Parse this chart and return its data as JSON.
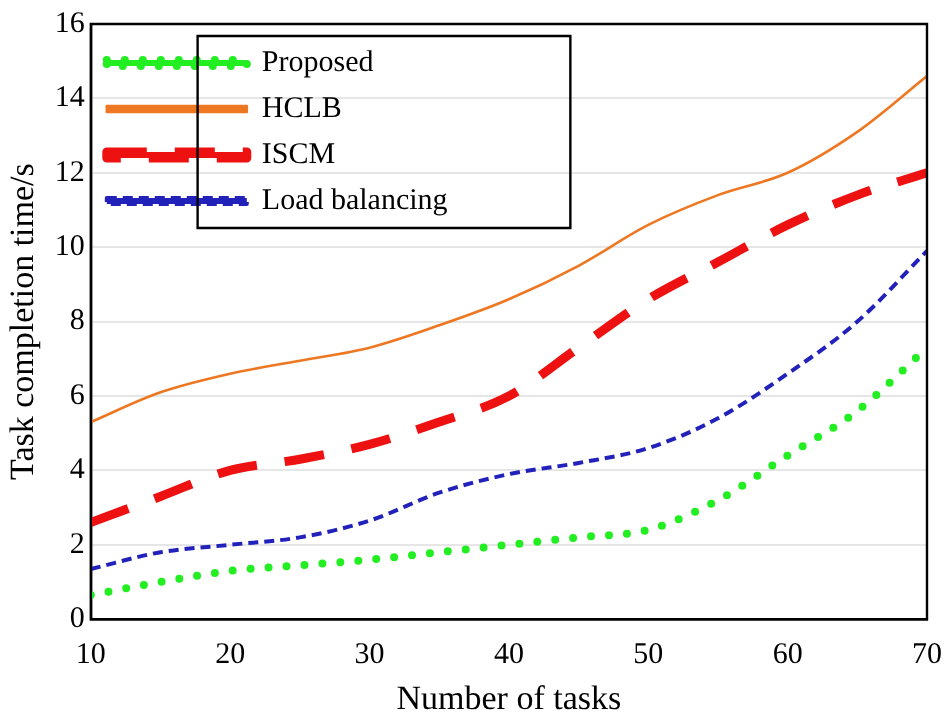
{
  "chart_data": {
    "type": "line",
    "xlabel": "Number of tasks",
    "ylabel": "Task completion time/s",
    "x": [
      10,
      15,
      20,
      25,
      30,
      35,
      40,
      45,
      50,
      55,
      60,
      65,
      70
    ],
    "series": [
      {
        "name": "Proposed",
        "color": "#22ee22",
        "line_style": "dotted",
        "values": [
          0.65,
          1.0,
          1.3,
          1.45,
          1.6,
          1.8,
          2.0,
          2.2,
          2.4,
          3.2,
          4.4,
          5.6,
          7.3
        ]
      },
      {
        "name": "HCLB",
        "color": "#ee7722",
        "line_style": "solid",
        "values": [
          5.3,
          6.1,
          6.6,
          6.95,
          7.3,
          7.9,
          8.6,
          9.5,
          10.6,
          11.4,
          12.0,
          13.1,
          14.6
        ]
      },
      {
        "name": "ISCM",
        "color": "#ee1111",
        "line_style": "dashed",
        "values": [
          2.6,
          3.3,
          4.0,
          4.3,
          4.7,
          5.3,
          6.0,
          7.3,
          8.6,
          9.6,
          10.6,
          11.4,
          12.0
        ]
      },
      {
        "name": "Load balancing",
        "color": "#2222bb",
        "line_style": "dashed",
        "values": [
          1.35,
          1.8,
          2.0,
          2.2,
          2.65,
          3.4,
          3.9,
          4.2,
          4.6,
          5.4,
          6.6,
          8.0,
          9.9
        ]
      }
    ],
    "xlim": [
      10,
      70
    ],
    "xticks": [
      10,
      20,
      30,
      40,
      50,
      60,
      70
    ],
    "ylim": [
      0,
      16
    ],
    "yticks": [
      0,
      2,
      4,
      6,
      8,
      10,
      12,
      14,
      16
    ],
    "grid": "y",
    "legend": "top left",
    "marker": "none"
  }
}
